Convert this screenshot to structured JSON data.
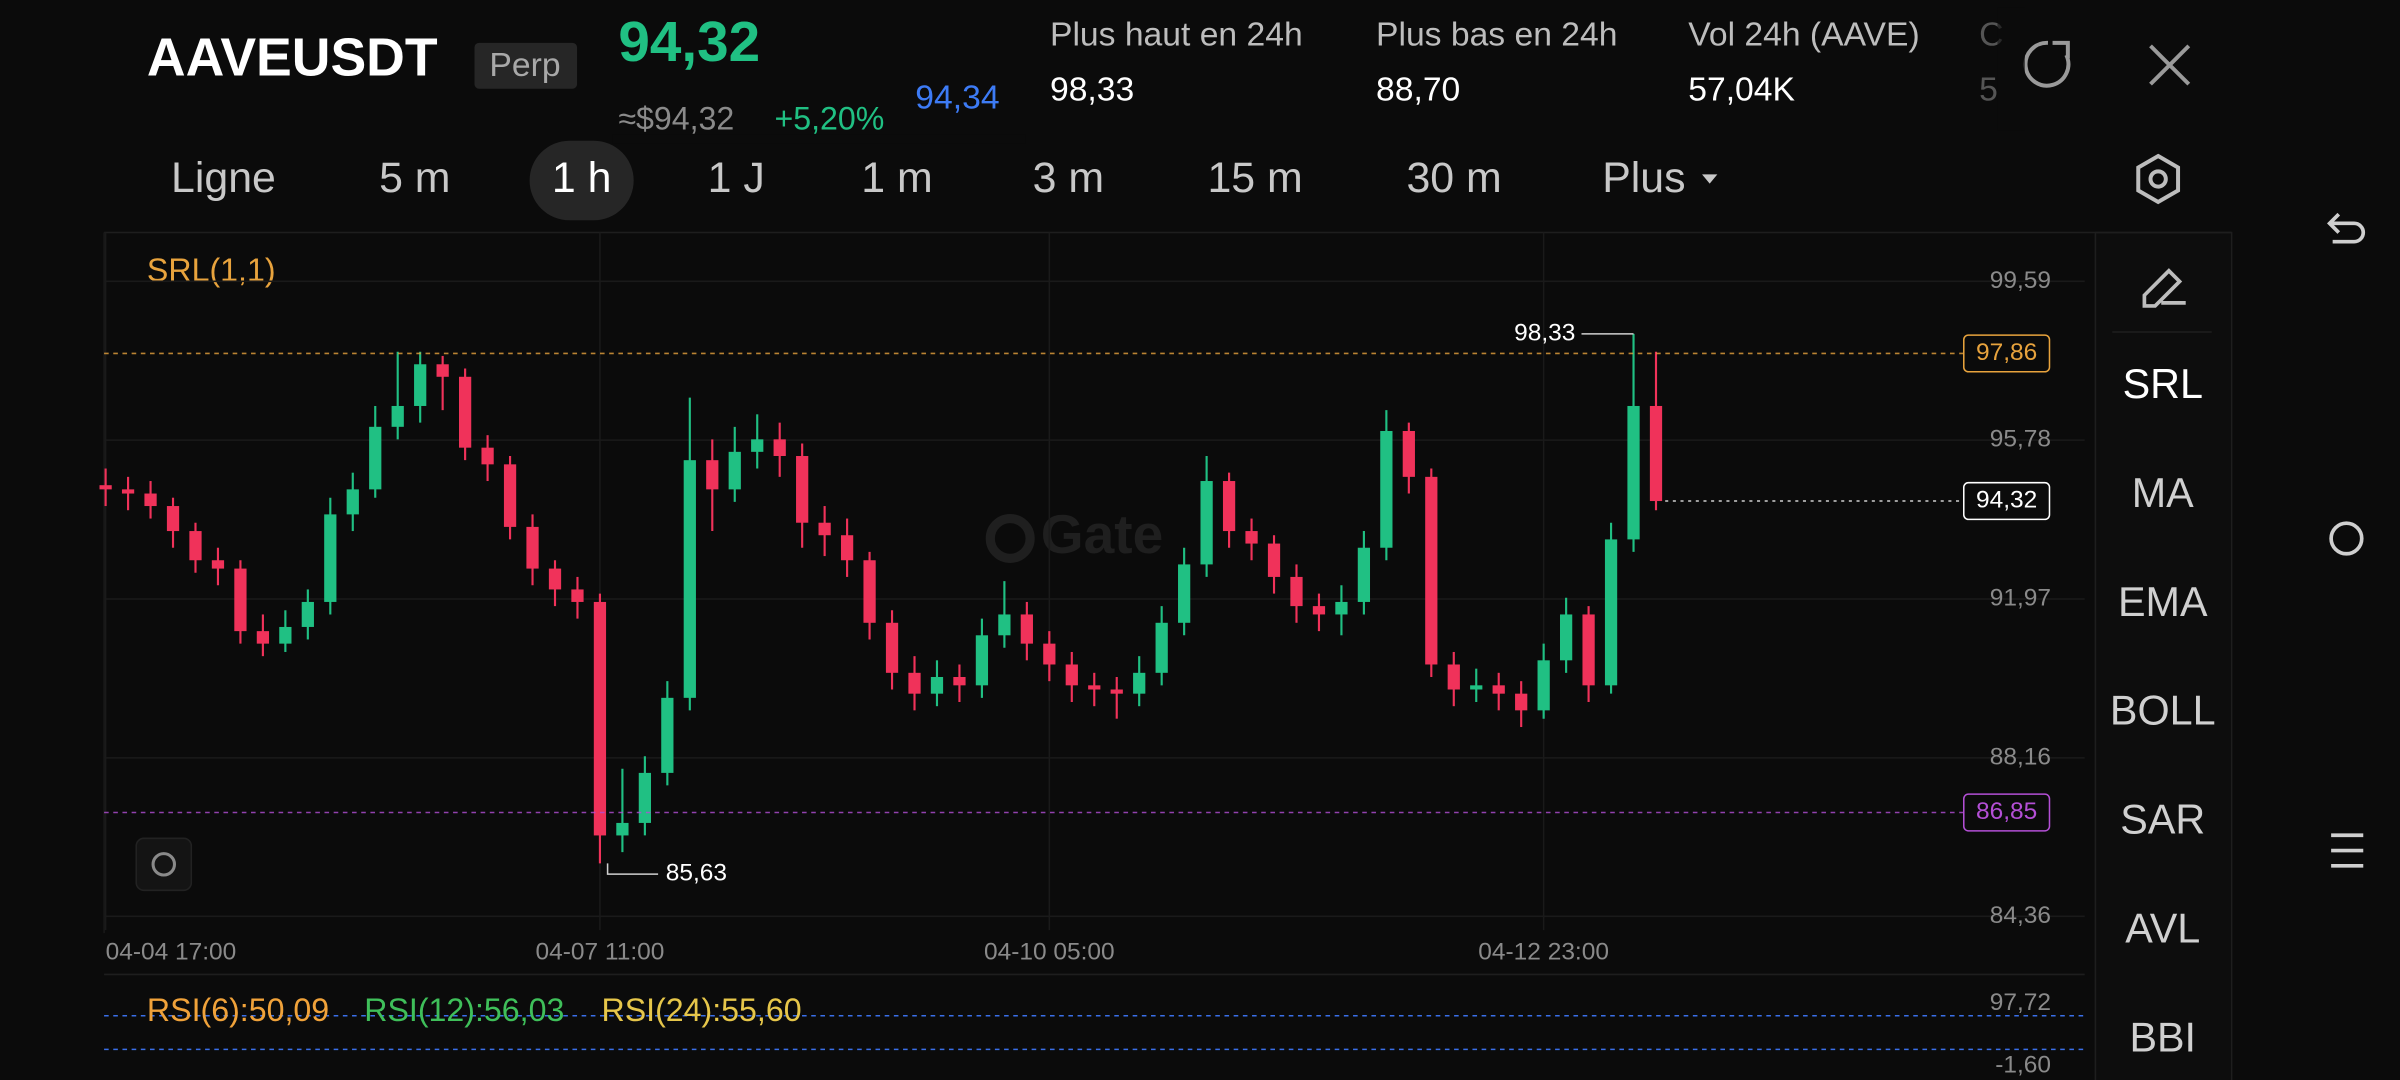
{
  "header": {
    "symbol": "AAVEUSDT",
    "contract": "Perp",
    "last_price": "94,32",
    "fiat_price": "≈$94,32",
    "change": "+5,20%",
    "mark_price": "94,34",
    "stats": [
      {
        "label": "Plus haut en 24h",
        "value": "98,33"
      },
      {
        "label": "Plus bas en 24h",
        "value": "88,70"
      },
      {
        "label": "Vol 24h (AAVE)",
        "value": "57,04K"
      },
      {
        "label": "C",
        "value": "5"
      }
    ]
  },
  "tabs": [
    "Ligne",
    "5 m",
    "1 h",
    "1 J",
    "1 m",
    "3 m",
    "15 m",
    "30 m",
    "Plus"
  ],
  "active_tab": 2,
  "indicators": [
    "SRL",
    "MA",
    "EMA",
    "BOLL",
    "SAR",
    "AVL",
    "BBI"
  ],
  "active_indicator": 0,
  "watermark": "Gate",
  "chart_data": {
    "type": "candlestick",
    "indicator_label": "SRL(1,1)",
    "up_color": "#20c083",
    "down_color": "#f0325a",
    "grid": true,
    "ylim": [
      84.03,
      100.76
    ],
    "yticks": [
      {
        "value": 99.59,
        "label": "99,59"
      },
      {
        "value": 95.78,
        "label": "95,78"
      },
      {
        "value": 91.97,
        "label": "91,97"
      },
      {
        "value": 88.16,
        "label": "88,16"
      },
      {
        "value": 84.36,
        "label": "84,36"
      }
    ],
    "categories": [
      "04-04 17:00",
      null,
      null,
      null,
      null,
      null,
      null,
      null,
      null,
      null,
      null,
      null,
      null,
      null,
      null,
      null,
      null,
      null,
      null,
      null,
      null,
      null,
      "04-07 11:00",
      null,
      null,
      null,
      null,
      null,
      null,
      null,
      null,
      null,
      null,
      null,
      null,
      null,
      null,
      null,
      null,
      null,
      null,
      null,
      "04-10 05:00",
      null,
      null,
      null,
      null,
      null,
      null,
      null,
      null,
      null,
      null,
      null,
      null,
      null,
      null,
      null,
      null,
      null,
      null,
      null,
      null,
      null,
      "04-12 23:00",
      null,
      null,
      null
    ],
    "ohlc": [
      [
        94.7,
        95.1,
        94.2,
        94.6
      ],
      [
        94.6,
        94.9,
        94.1,
        94.5
      ],
      [
        94.5,
        94.8,
        93.9,
        94.2
      ],
      [
        94.2,
        94.4,
        93.2,
        93.6
      ],
      [
        93.6,
        93.8,
        92.6,
        92.9
      ],
      [
        92.9,
        93.2,
        92.3,
        92.7
      ],
      [
        92.7,
        92.9,
        90.9,
        91.2
      ],
      [
        91.2,
        91.6,
        90.6,
        90.9
      ],
      [
        90.9,
        91.7,
        90.7,
        91.3
      ],
      [
        91.3,
        92.2,
        91.0,
        91.9
      ],
      [
        91.9,
        94.4,
        91.6,
        94.0
      ],
      [
        94.0,
        95.0,
        93.6,
        94.6
      ],
      [
        94.6,
        96.6,
        94.4,
        96.1
      ],
      [
        96.1,
        97.9,
        95.8,
        96.6
      ],
      [
        96.6,
        97.9,
        96.2,
        97.6
      ],
      [
        97.6,
        97.8,
        96.5,
        97.3
      ],
      [
        97.3,
        97.5,
        95.3,
        95.6
      ],
      [
        95.6,
        95.9,
        94.8,
        95.2
      ],
      [
        95.2,
        95.4,
        93.4,
        93.7
      ],
      [
        93.7,
        94.0,
        92.3,
        92.7
      ],
      [
        92.7,
        92.9,
        91.8,
        92.2
      ],
      [
        92.2,
        92.5,
        91.5,
        91.9
      ],
      [
        91.9,
        92.1,
        85.63,
        86.3
      ],
      [
        86.3,
        87.9,
        85.9,
        86.6
      ],
      [
        86.6,
        88.2,
        86.3,
        87.8
      ],
      [
        87.8,
        90.0,
        87.5,
        89.6
      ],
      [
        89.6,
        96.8,
        89.3,
        95.3
      ],
      [
        95.3,
        95.8,
        93.6,
        94.6
      ],
      [
        94.6,
        96.1,
        94.3,
        95.5
      ],
      [
        95.5,
        96.4,
        95.1,
        95.8
      ],
      [
        95.8,
        96.2,
        94.9,
        95.4
      ],
      [
        95.4,
        95.7,
        93.2,
        93.8
      ],
      [
        93.8,
        94.2,
        93.0,
        93.5
      ],
      [
        93.5,
        93.9,
        92.5,
        92.9
      ],
      [
        92.9,
        93.1,
        91.0,
        91.4
      ],
      [
        91.4,
        91.7,
        89.8,
        90.2
      ],
      [
        90.2,
        90.6,
        89.3,
        89.7
      ],
      [
        89.7,
        90.5,
        89.4,
        90.1
      ],
      [
        90.1,
        90.4,
        89.5,
        89.9
      ],
      [
        89.9,
        91.5,
        89.6,
        91.1
      ],
      [
        91.1,
        92.4,
        90.8,
        91.6
      ],
      [
        91.6,
        91.9,
        90.5,
        90.9
      ],
      [
        90.9,
        91.2,
        90.0,
        90.4
      ],
      [
        90.4,
        90.7,
        89.5,
        89.9
      ],
      [
        89.9,
        90.2,
        89.4,
        89.8
      ],
      [
        89.8,
        90.1,
        89.1,
        89.7
      ],
      [
        89.7,
        90.6,
        89.4,
        90.2
      ],
      [
        90.2,
        91.8,
        89.9,
        91.4
      ],
      [
        91.4,
        93.2,
        91.1,
        92.8
      ],
      [
        92.8,
        95.4,
        92.5,
        94.8
      ],
      [
        94.8,
        95.0,
        93.2,
        93.6
      ],
      [
        93.6,
        93.9,
        92.9,
        93.3
      ],
      [
        93.3,
        93.5,
        92.1,
        92.5
      ],
      [
        92.5,
        92.8,
        91.4,
        91.8
      ],
      [
        91.8,
        92.1,
        91.2,
        91.6
      ],
      [
        91.6,
        92.3,
        91.1,
        91.9
      ],
      [
        91.9,
        93.6,
        91.6,
        93.2
      ],
      [
        93.2,
        96.5,
        92.9,
        96.0
      ],
      [
        96.0,
        96.2,
        94.5,
        94.9
      ],
      [
        94.9,
        95.1,
        90.1,
        90.4
      ],
      [
        90.4,
        90.7,
        89.4,
        89.8
      ],
      [
        89.8,
        90.3,
        89.5,
        89.9
      ],
      [
        89.9,
        90.2,
        89.3,
        89.7
      ],
      [
        89.7,
        90.0,
        88.9,
        89.3
      ],
      [
        89.3,
        90.9,
        89.1,
        90.5
      ],
      [
        90.5,
        92.0,
        90.2,
        91.6
      ],
      [
        91.6,
        91.8,
        89.5,
        89.9
      ],
      [
        89.9,
        93.8,
        89.7,
        93.4
      ],
      [
        93.4,
        98.33,
        93.1,
        96.6
      ],
      [
        96.6,
        97.9,
        94.1,
        94.32
      ]
    ],
    "high_label": {
      "value": 98.33,
      "label": "98,33"
    },
    "low_label": {
      "value": 85.63,
      "label": "85,63"
    },
    "srl_lines": [
      {
        "value": 97.86,
        "label": "97,86",
        "color": "#e8a33d"
      },
      {
        "value": 86.85,
        "label": "86,85",
        "color": "#b44fd6"
      }
    ],
    "current_price": {
      "value": 94.32,
      "label": "94,32"
    },
    "rsi_panel": {
      "labels": [
        {
          "text": "RSI(6):50,09",
          "color": "#f0a23a"
        },
        {
          "text": "RSI(12):56,03",
          "color": "#3fbf5a"
        },
        {
          "text": "RSI(24):55,60",
          "color": "#e6c64a"
        }
      ],
      "ylim": [
        -1.6,
        97.72
      ],
      "yticks": [
        {
          "value": 97.72,
          "label": "97,72"
        },
        {
          "value": -1.6,
          "label": "-1,60"
        }
      ]
    }
  }
}
